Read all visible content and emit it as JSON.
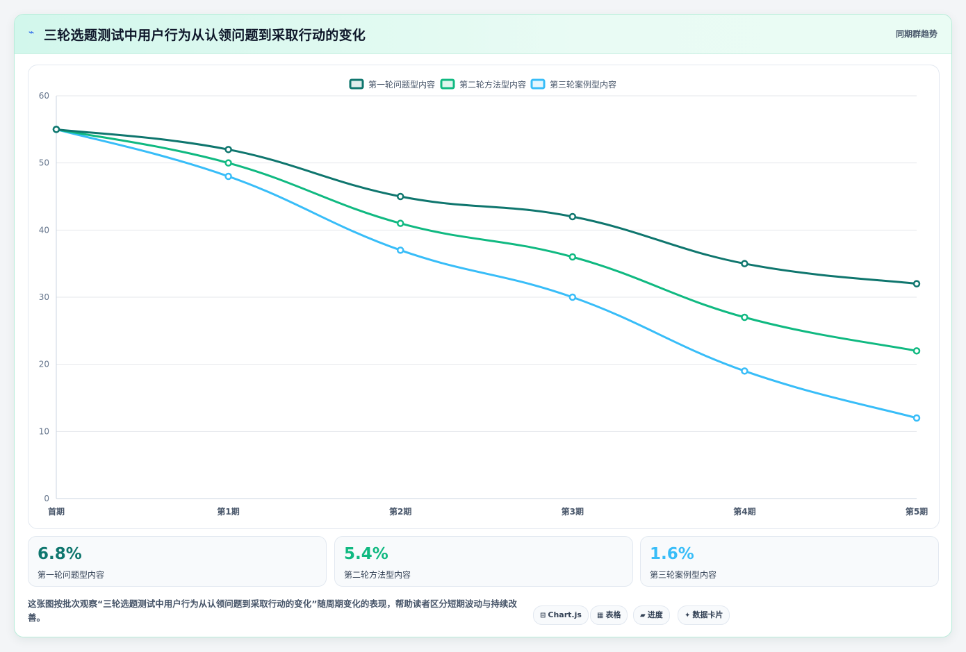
{
  "header": {
    "icon": "lightning-icon",
    "title": "三轮选题测试中用户行为从认领问题到采取行动的变化",
    "badge": "同期群趋势"
  },
  "chart_data": {
    "type": "line",
    "categories": [
      "首期",
      "第1期",
      "第2期",
      "第3期",
      "第4期",
      "第5期"
    ],
    "ylim": [
      0,
      60
    ],
    "yticks": [
      0,
      10,
      20,
      30,
      40,
      50,
      60
    ],
    "grid": true,
    "legend": "top-center",
    "smooth": true,
    "series": [
      {
        "name": "第一轮问题型内容",
        "color": "#0f766e",
        "values": [
          55,
          52,
          45,
          42,
          35,
          32
        ]
      },
      {
        "name": "第二轮方法型内容",
        "color": "#10b981",
        "values": [
          55,
          50,
          41,
          36,
          27,
          22
        ]
      },
      {
        "name": "第三轮案例型内容",
        "color": "#38bdf8",
        "values": [
          55,
          48,
          37,
          30,
          19,
          12
        ]
      }
    ]
  },
  "stats": [
    {
      "value": "6.8%",
      "label": "第一轮问题型内容",
      "color": "#0f766e"
    },
    {
      "value": "5.4%",
      "label": "第二轮方法型内容",
      "color": "#10b981"
    },
    {
      "value": "1.6%",
      "label": "第三轮案例型内容",
      "color": "#38bdf8"
    }
  ],
  "footer": {
    "note": "这张图按批次观察“三轮选题测试中用户行为从认领问题到采取行动的变化”随周期变化的表现，帮助读者区分短期波动与持续改善。",
    "pills": [
      {
        "icon": "⊟",
        "label": "Chart.js"
      },
      {
        "icon": "▦",
        "label": "表格"
      },
      {
        "icon": "▰",
        "label": "进度"
      },
      {
        "icon": "✦",
        "label": "数据卡片"
      }
    ]
  }
}
